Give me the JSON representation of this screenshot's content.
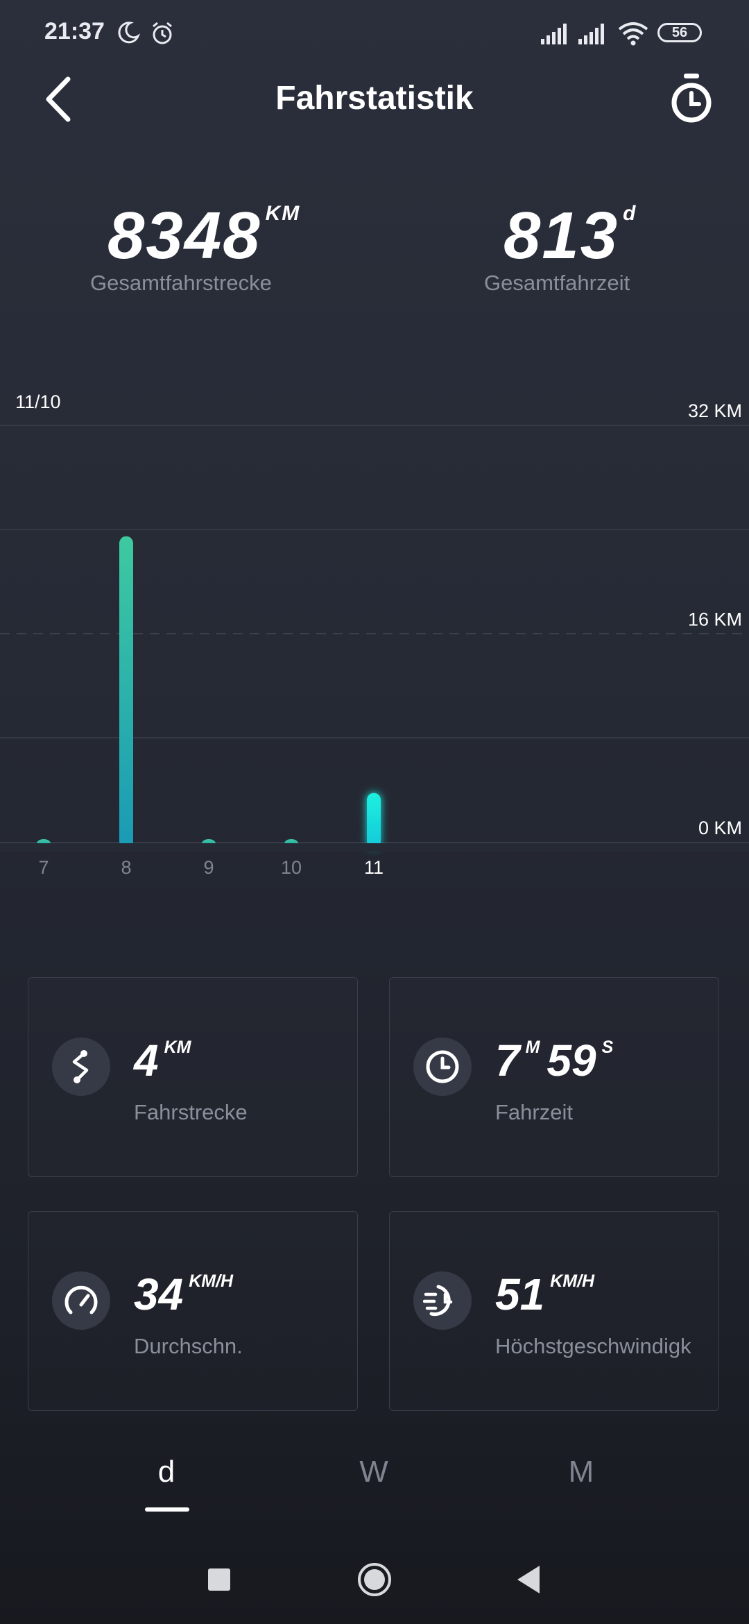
{
  "status_bar": {
    "time": "21:37",
    "battery": "56",
    "icons": [
      "moon-icon",
      "alarm-icon",
      "signal-icon",
      "signal-icon",
      "wifi-icon",
      "battery-icon"
    ]
  },
  "header": {
    "title": "Fahrstatistik",
    "back_icon": "chevron-left-icon",
    "timer_icon": "stopwatch-icon"
  },
  "totals": {
    "distance": {
      "value": "8348",
      "unit": "KM",
      "label": "Gesamtfahrstrecke"
    },
    "time": {
      "value": "813",
      "unit": "d",
      "label": "Gesamtfahrzeit"
    }
  },
  "chart_data": {
    "type": "bar",
    "date_label": "11/10",
    "categories": [
      "7",
      "8",
      "9",
      "10",
      "11"
    ],
    "values": [
      0.2,
      23.5,
      0.2,
      0.2,
      3.8
    ],
    "selected_index": 4,
    "yticks": [
      {
        "value": 32,
        "label": "32 KM"
      },
      {
        "value": 16,
        "label": "16 KM"
      },
      {
        "value": 0,
        "label": "0 KM"
      }
    ],
    "ylim": [
      0,
      32
    ],
    "unit": "KM",
    "bar_color_top": "#3ec9a0",
    "bar_color_bottom": "#1a9ab5",
    "selected_color": "#20f0e0"
  },
  "stats": {
    "distance": {
      "value": "4",
      "unit": "KM",
      "label": "Fahrstrecke",
      "icon": "route-icon"
    },
    "time": {
      "minutes": "7",
      "minutes_unit": "M",
      "seconds": "59",
      "seconds_unit": "S",
      "label": "Fahrzeit",
      "icon": "clock-icon"
    },
    "avg_speed": {
      "value": "34",
      "unit": "KM/H",
      "label": "Durchschn.",
      "icon": "speedometer-icon"
    },
    "max_speed": {
      "value": "51",
      "unit": "KM/H",
      "label": "Höchstgeschwindigk",
      "icon": "fast-timer-icon"
    }
  },
  "tabs": [
    {
      "label": "d",
      "active": true
    },
    {
      "label": "W",
      "active": false
    },
    {
      "label": "M",
      "active": false
    }
  ],
  "nav": {
    "icons": [
      "square-icon",
      "circle-icon",
      "triangle-back-icon"
    ]
  }
}
